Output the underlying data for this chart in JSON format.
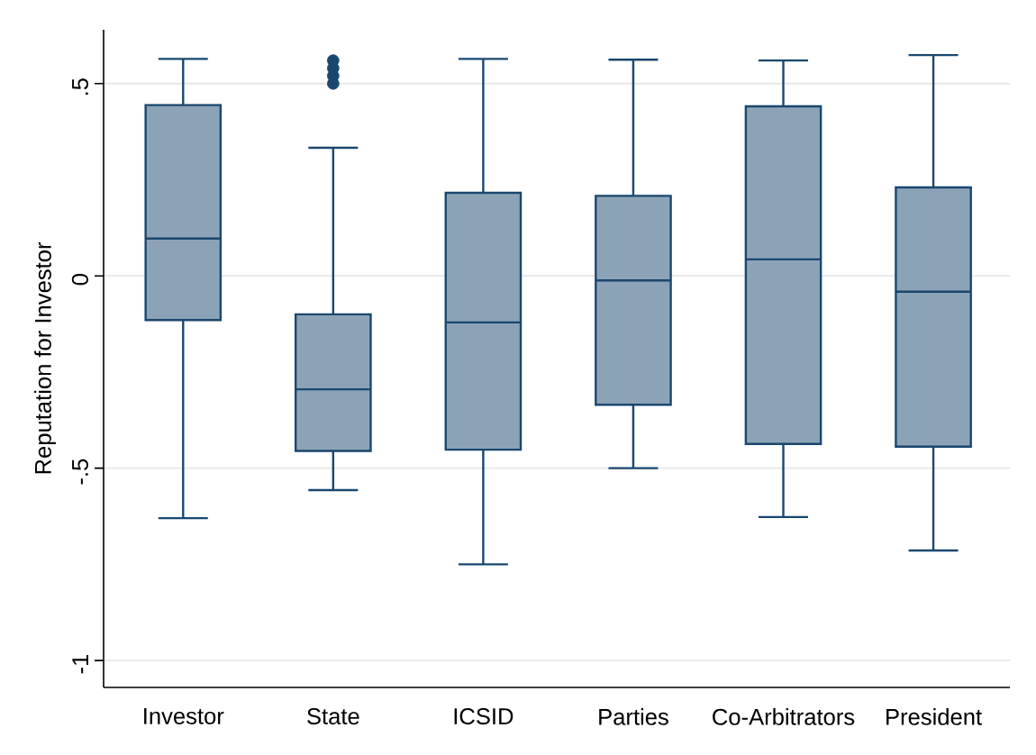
{
  "chart_data": {
    "type": "box",
    "ylabel": "Reputation for Investor",
    "categories": [
      "Investor",
      "State",
      "ICSID",
      "Parties",
      "Co-Arbitrators",
      "President"
    ],
    "color": "#1a476f",
    "boxes": [
      {
        "low": -0.63,
        "q1": -0.115,
        "median": 0.097,
        "q3": 0.444,
        "high": 0.564
      },
      {
        "low": -0.557,
        "q1": -0.455,
        "median": -0.295,
        "q3": -0.1,
        "high": 0.333,
        "outliers": [
          0.5,
          0.52,
          0.54,
          0.56
        ]
      },
      {
        "low": -0.75,
        "q1": -0.452,
        "median": -0.121,
        "q3": 0.216,
        "high": 0.564
      },
      {
        "low": -0.5,
        "q1": -0.335,
        "median": -0.012,
        "q3": 0.208,
        "high": 0.562
      },
      {
        "low": -0.627,
        "q1": -0.437,
        "median": 0.043,
        "q3": 0.441,
        "high": 0.56
      },
      {
        "low": -0.714,
        "q1": -0.444,
        "median": -0.041,
        "q3": 0.23,
        "high": 0.574
      }
    ],
    "ylim": [
      -1.07,
      0.64
    ],
    "yticks": [
      -1,
      {
        "value": -0.5,
        "label": "-.5"
      },
      0,
      {
        "value": 0.5,
        "label": ".5"
      }
    ],
    "grid": "y"
  }
}
